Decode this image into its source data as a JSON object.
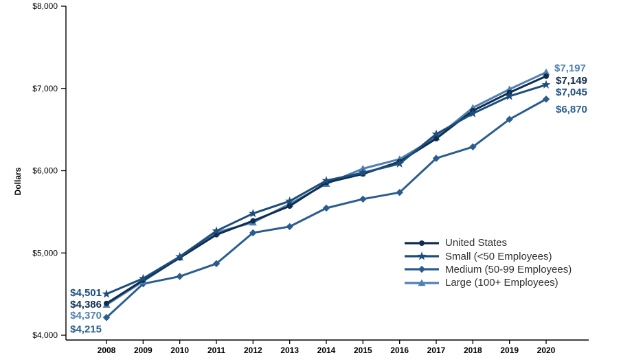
{
  "chart_data": {
    "type": "line",
    "title": "",
    "ylabel": "Dollars",
    "ylim": [
      4000,
      8000
    ],
    "grid": "off",
    "legend_position": "inside-lower-right",
    "x_labels": [
      "2008",
      "2009",
      "2010",
      "2011",
      "2012",
      "2013",
      "2014",
      "2015",
      "2016",
      "2017",
      "2018",
      "2019",
      "2020"
    ],
    "yticks": [
      {
        "value": 4000,
        "label": "$4,000"
      },
      {
        "value": 5000,
        "label": "$5,000"
      },
      {
        "value": 6000,
        "label": "$6,000"
      },
      {
        "value": 7000,
        "label": "$7,000"
      },
      {
        "value": 8000,
        "label": "$8,000"
      }
    ],
    "series": [
      {
        "name": "United States",
        "marker": "circle",
        "color": "#102d4e",
        "values": [
          4386,
          4669,
          4940,
          5222,
          5390,
          5570,
          5855,
          5960,
          6110,
          6390,
          6730,
          6950,
          7149
        ],
        "start_label": "$4,386",
        "end_label": "$7,149"
      },
      {
        "name": "Small (<50 Employees)",
        "marker": "star",
        "color": "#1c4d7c",
        "values": [
          4501,
          4690,
          4955,
          5268,
          5480,
          5630,
          5880,
          5975,
          6085,
          6445,
          6695,
          6905,
          7045
        ],
        "start_label": "$4,501",
        "end_label": "$7,045"
      },
      {
        "name": "Medium (50-99 Employees)",
        "marker": "diamond",
        "color": "#2a5d8f",
        "values": [
          4215,
          4625,
          4715,
          4870,
          5245,
          5320,
          5545,
          5655,
          5735,
          6150,
          6290,
          6625,
          6870
        ],
        "start_label": "$4,215",
        "end_label": "$6,870"
      },
      {
        "name": "Large (100+ Employees)",
        "marker": "triangle",
        "color": "#4e80b3",
        "values": [
          4370,
          4655,
          4945,
          5250,
          5370,
          5595,
          5840,
          6025,
          6140,
          6405,
          6765,
          6990,
          7197
        ],
        "start_label": "$4,370",
        "end_label": "$7,197"
      }
    ]
  }
}
